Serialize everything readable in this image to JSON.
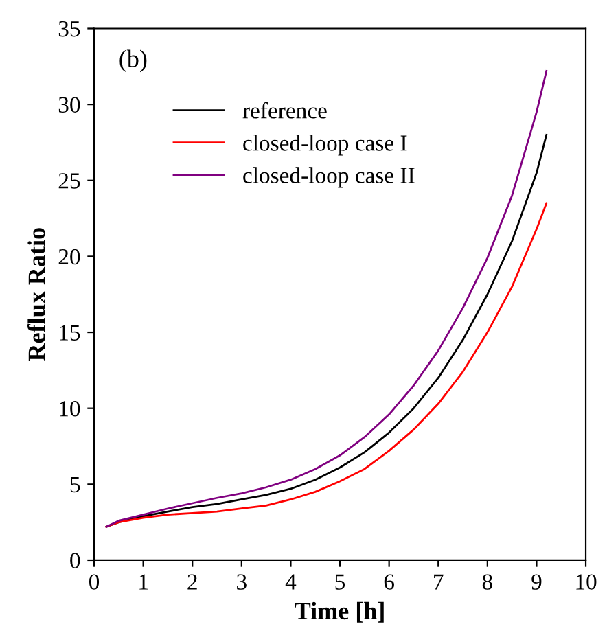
{
  "chart_data": {
    "type": "line",
    "xlabel": "Time [h]",
    "ylabel": "Reflux Ratio",
    "annotations": [
      "(b)"
    ],
    "x": [
      0.25,
      0.5,
      1,
      1.5,
      2,
      2.5,
      3,
      3.5,
      4,
      4.5,
      5,
      5.5,
      6,
      6.5,
      7,
      7.5,
      8,
      8.5,
      9,
      9.2
    ],
    "series": [
      {
        "name": "reference",
        "color": "#000000",
        "values": [
          2.2,
          2.5,
          2.9,
          3.2,
          3.5,
          3.7,
          4.0,
          4.3,
          4.7,
          5.3,
          6.1,
          7.1,
          8.4,
          10.0,
          12.0,
          14.5,
          17.5,
          21.0,
          25.5,
          28.0
        ]
      },
      {
        "name": "closed-loop case I",
        "color": "#ff0000",
        "values": [
          2.2,
          2.5,
          2.8,
          3.0,
          3.1,
          3.2,
          3.4,
          3.6,
          4.0,
          4.5,
          5.2,
          6.0,
          7.2,
          8.6,
          10.3,
          12.4,
          15.0,
          18.0,
          21.8,
          23.5
        ]
      },
      {
        "name": "closed-loop case II",
        "color": "#800080",
        "values": [
          2.2,
          2.6,
          3.0,
          3.4,
          3.75,
          4.1,
          4.4,
          4.8,
          5.3,
          6.0,
          6.9,
          8.1,
          9.6,
          11.5,
          13.8,
          16.6,
          19.9,
          24.0,
          29.5,
          32.2
        ]
      }
    ],
    "xlim": [
      0,
      10
    ],
    "xticks": [
      0,
      1,
      2,
      3,
      4,
      5,
      6,
      7,
      8,
      9,
      10
    ],
    "ylim": [
      0,
      35
    ],
    "yticks": [
      0,
      5,
      10,
      15,
      20,
      25,
      30,
      35
    ],
    "grid": false,
    "legend": "top left",
    "marker": "none",
    "line_style": "solid"
  }
}
